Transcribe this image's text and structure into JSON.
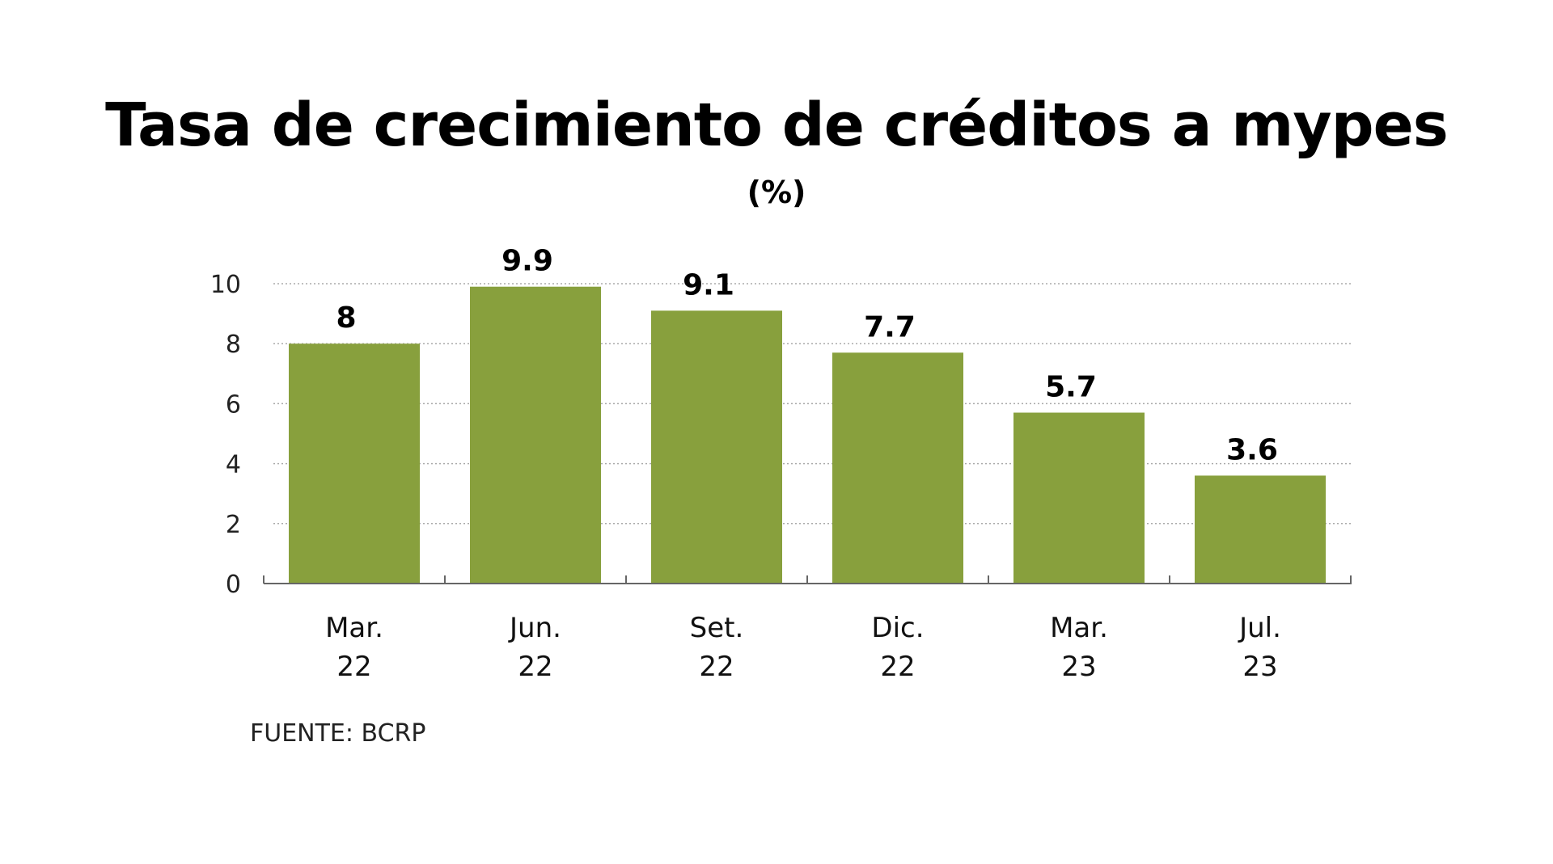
{
  "title": "Tasa de crecimiento de créditos a mypes",
  "subtitle": "(%)",
  "source": "FUENTE: BCRP",
  "chart_data": {
    "type": "bar",
    "title": "Tasa de crecimiento de créditos a mypes",
    "subtitle": "(%)",
    "categories": [
      [
        "Mar.",
        "22"
      ],
      [
        "Jun.",
        "22"
      ],
      [
        "Set.",
        "22"
      ],
      [
        "Dic.",
        "22"
      ],
      [
        "Mar.",
        "23"
      ],
      [
        "Jul.",
        "23"
      ]
    ],
    "values": [
      8,
      9.9,
      9.1,
      7.7,
      5.7,
      3.6
    ],
    "value_labels": [
      "8",
      "9.9",
      "9.1",
      "7.7",
      "5.7",
      "3.6"
    ],
    "yticks": [
      "0",
      "2",
      "4",
      "6",
      "8",
      "10"
    ],
    "ylim": [
      0,
      10
    ],
    "grid": true,
    "bar_color": "#88a03d"
  }
}
